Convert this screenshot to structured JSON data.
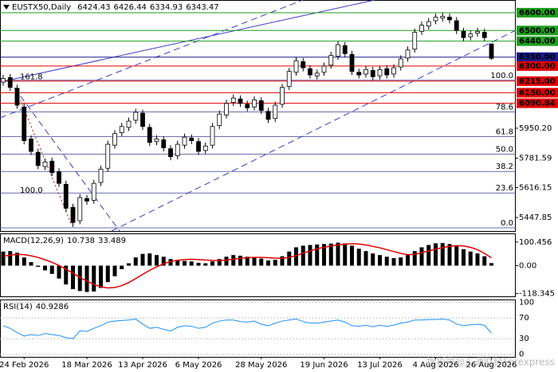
{
  "chart_data": [
    {
      "type": "candlestick",
      "title": "EUSTX50,Daily",
      "categories": [
        null,
        null,
        null,
        "24 Feb 2026",
        null,
        null,
        null,
        null,
        null,
        null,
        null,
        null,
        "18 Mar 2026",
        null,
        null,
        null,
        null,
        null,
        null,
        null,
        "13 Apr 2026",
        null,
        null,
        null,
        null,
        null,
        null,
        null,
        "6 May 2026",
        null,
        null,
        null,
        null,
        null,
        null,
        null,
        null,
        "28 May 2026",
        null,
        null,
        null,
        null,
        null,
        null,
        null,
        null,
        "19 Jun 2026",
        null,
        null,
        null,
        null,
        null,
        null,
        null,
        "13 Jul 2026",
        null,
        null,
        null,
        null,
        null,
        null,
        null,
        "4 Aug 2026",
        null,
        null,
        null,
        null,
        null,
        null,
        null,
        "26 Aug 2026"
      ],
      "open": [
        6210,
        6235,
        6175,
        6070,
        5890,
        5815,
        5735,
        5765,
        5705,
        5635,
        5505,
        5430,
        5555,
        5545,
        5645,
        5725,
        5855,
        5925,
        5955,
        5995,
        6035,
        5955,
        5875,
        5885,
        5835,
        5795,
        5855,
        5895,
        5875,
        5825,
        5855,
        5965,
        6025,
        6095,
        6115,
        6085,
        6070,
        6105,
        6045,
        6005,
        6085,
        6185,
        6265,
        6325,
        6285,
        6245,
        6265,
        6305,
        6355,
        6415,
        6365,
        6265,
        6255,
        6275,
        6245,
        6285,
        6255,
        6295,
        6345,
        6395,
        6495,
        6525,
        6555,
        6570,
        6575,
        6555,
        6495,
        6465,
        6485,
        6490,
        6424.43
      ],
      "high": [
        6250,
        6255,
        6195,
        6090,
        5910,
        5835,
        5780,
        5785,
        5725,
        5655,
        5525,
        5580,
        5575,
        5660,
        5740,
        5880,
        5940,
        5980,
        6010,
        6060,
        6055,
        5975,
        5910,
        5905,
        5855,
        5880,
        5920,
        5915,
        5895,
        5870,
        5980,
        6050,
        6110,
        6140,
        6135,
        6105,
        6130,
        6125,
        6065,
        6100,
        6200,
        6290,
        6350,
        6345,
        6305,
        6280,
        6320,
        6380,
        6440,
        6435,
        6385,
        6285,
        6300,
        6295,
        6300,
        6305,
        6310,
        6360,
        6410,
        6510,
        6550,
        6570,
        6595,
        6600,
        6595,
        6575,
        6515,
        6500,
        6515,
        6510,
        6426.44
      ],
      "low": [
        6190,
        6160,
        6060,
        5860,
        5800,
        5720,
        5715,
        5680,
        5620,
        5480,
        5395,
        5410,
        5520,
        5525,
        5625,
        5705,
        5835,
        5905,
        5935,
        5975,
        5940,
        5850,
        5855,
        5820,
        5770,
        5775,
        5835,
        5860,
        5800,
        5805,
        5835,
        5945,
        6005,
        6075,
        6070,
        6045,
        6050,
        6030,
        5980,
        5985,
        6065,
        6165,
        6245,
        6270,
        6230,
        6225,
        6245,
        6285,
        6335,
        6350,
        6250,
        6230,
        6235,
        6220,
        6225,
        6230,
        6235,
        6275,
        6325,
        6375,
        6475,
        6505,
        6535,
        6550,
        6540,
        6480,
        6440,
        6445,
        6465,
        6440,
        6334.93
      ],
      "close": [
        6230,
        6180,
        6080,
        5880,
        5820,
        5740,
        5760,
        5700,
        5640,
        5500,
        5420,
        5560,
        5540,
        5640,
        5720,
        5860,
        5920,
        5960,
        5990,
        6040,
        5960,
        5870,
        5890,
        5840,
        5790,
        5860,
        5900,
        5880,
        5820,
        5850,
        5960,
        6030,
        6090,
        6120,
        6090,
        6065,
        6110,
        6050,
        6000,
        6080,
        6180,
        6270,
        6330,
        6290,
        6250,
        6260,
        6300,
        6360,
        6420,
        6370,
        6270,
        6250,
        6280,
        6240,
        6280,
        6250,
        6290,
        6340,
        6390,
        6490,
        6530,
        6550,
        6575,
        6580,
        6560,
        6500,
        6460,
        6480,
        6495,
        6460,
        6343.47
      ],
      "up_color": "#ffffff",
      "down_color": "#000000",
      "ylim": [
        5372,
        6667
      ],
      "yticks": [
        {
          "value": 5950.2,
          "label": "5950.20"
        },
        5781.59,
        5616.15,
        5447.85
      ],
      "levels": [
        {
          "value": 6600,
          "label": "6600.00",
          "color": "#1e9e1e"
        },
        {
          "value": 6500,
          "label": "6500.00",
          "color": "#1e9e1e"
        },
        {
          "value": 6440,
          "label": "6440.00",
          "color": "#1e9e1e"
        },
        {
          "value": 6350,
          "label": "6350.00",
          "color": "#1a1a8c"
        },
        {
          "value": 6300,
          "label": "6300.00",
          "color": "#e00000"
        },
        {
          "value": 6215,
          "label": "6215.00",
          "color": "#e00000"
        },
        {
          "value": 6150,
          "label": "6150.00",
          "color": "#e00000"
        },
        {
          "value": 6090.84,
          "label": "6090.84",
          "color": "#e00000"
        }
      ],
      "fib_color": "#3c3c96",
      "fib_levels": [
        {
          "value": 6220,
          "label": "100.0"
        },
        {
          "value": 6042,
          "label": "78.6"
        },
        {
          "value": 5903,
          "label": "61.8"
        },
        {
          "value": 5805,
          "label": "50.0"
        },
        {
          "value": 5707,
          "label": "38.2"
        },
        {
          "value": 5586,
          "label": "23.6"
        },
        {
          "value": 5390,
          "label": "0.0"
        }
      ],
      "fib_extension_labels": [
        {
          "value": 6240,
          "label": "161.8"
        },
        {
          "value": 5600,
          "label": "100.0"
        }
      ],
      "watermark": "搜狐号@汇通财经Forexpress"
    },
    {
      "type": "macd",
      "title": "MACD(12,26,9)",
      "series": [
        {
          "name": "MACD",
          "color": "#000000",
          "values": [
            60,
            62,
            55,
            35,
            15,
            -5,
            -20,
            -35,
            -55,
            -80,
            -100,
            -108,
            -112,
            -110,
            -95,
            -70,
            -45,
            -15,
            10,
            35,
            50,
            52,
            45,
            38,
            28,
            22,
            20,
            18,
            12,
            10,
            18,
            28,
            38,
            45,
            42,
            38,
            35,
            30,
            22,
            25,
            40,
            60,
            78,
            85,
            88,
            90,
            92,
            94,
            98,
            95,
            85,
            72,
            62,
            52,
            45,
            38,
            32,
            35,
            45,
            62,
            78,
            88,
            95,
            96,
            92,
            82,
            70,
            60,
            52,
            40,
            10.738
          ]
        },
        {
          "name": "Signal",
          "color": "#e00000",
          "values": [
            40,
            45,
            48,
            47,
            42,
            35,
            25,
            14,
            1,
            -15,
            -32,
            -50,
            -66,
            -80,
            -90,
            -95,
            -93,
            -85,
            -72,
            -55,
            -37,
            -20,
            -5,
            8,
            18,
            23,
            26,
            27,
            26,
            24,
            22,
            22,
            24,
            27,
            31,
            34,
            35,
            35,
            34,
            32,
            31,
            35,
            43,
            53,
            63,
            72,
            78,
            84,
            88,
            92,
            93,
            92,
            88,
            82,
            76,
            68,
            60,
            52,
            47,
            48,
            55,
            63,
            70,
            77,
            82,
            85,
            84,
            78,
            68,
            52,
            33.489
          ]
        }
      ],
      "ylim": [
        -130.6,
        133.9
      ],
      "yticks": [
        100.456,
        {
          "value": 0,
          "label": "0.00"
        },
        -118.345
      ]
    },
    {
      "type": "line",
      "title": "RSI(14)",
      "series": [
        {
          "name": "RSI",
          "color": "#1e90ff",
          "values": [
            55,
            50,
            42,
            35,
            38,
            36,
            40,
            38,
            36,
            32,
            30,
            45,
            44,
            50,
            55,
            62,
            64,
            65,
            66,
            68,
            58,
            50,
            52,
            48,
            45,
            52,
            55,
            54,
            50,
            52,
            60,
            64,
            66,
            66,
            63,
            62,
            64,
            58,
            55,
            60,
            64,
            66,
            68,
            63,
            60,
            60,
            62,
            64,
            66,
            62,
            55,
            54,
            56,
            53,
            56,
            54,
            56,
            60,
            62,
            66,
            66,
            67,
            67,
            68,
            66,
            58,
            55,
            57,
            58,
            56,
            40.9286
          ]
        }
      ],
      "ylim": [
        -5,
        104
      ],
      "yticks": [
        100,
        70,
        30,
        0
      ]
    }
  ]
}
